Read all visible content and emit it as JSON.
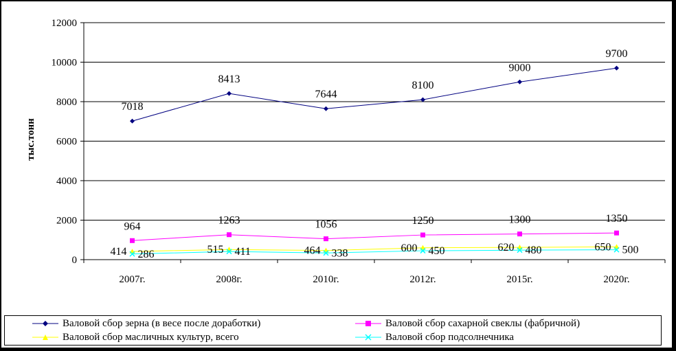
{
  "chart_data": {
    "type": "line",
    "ylabel": "тыс.тонн",
    "xlabel": "",
    "ylim": [
      0,
      12000
    ],
    "yticks": [
      "0",
      "2000",
      "4000",
      "6000",
      "8000",
      "10000",
      "12000"
    ],
    "categories": [
      "2007г.",
      "2008г.",
      "2010г.",
      "2012г.",
      "2015г.",
      "2020г."
    ],
    "grid": true,
    "legend_position": "bottom",
    "series": [
      {
        "name": "Валовой сбор зерна (в весе после доработки)",
        "color": "#000080",
        "marker": "diamond",
        "values": [
          7018,
          8413,
          7644,
          8100,
          9000,
          9700
        ]
      },
      {
        "name": "Валовой сбор сахарной свеклы (фабричной)",
        "color": "#FF00FF",
        "marker": "square",
        "values": [
          964,
          1263,
          1056,
          1250,
          1300,
          1350
        ]
      },
      {
        "name": "Валовой сбор масличных культур, всего",
        "color": "#FFFF00",
        "marker": "triangle",
        "values": [
          414,
          515,
          464,
          600,
          620,
          650
        ]
      },
      {
        "name": "Валовой сбор подсолнечника",
        "color": "#00FFFF",
        "marker": "x",
        "values": [
          286,
          411,
          338,
          450,
          480,
          500
        ]
      }
    ]
  }
}
